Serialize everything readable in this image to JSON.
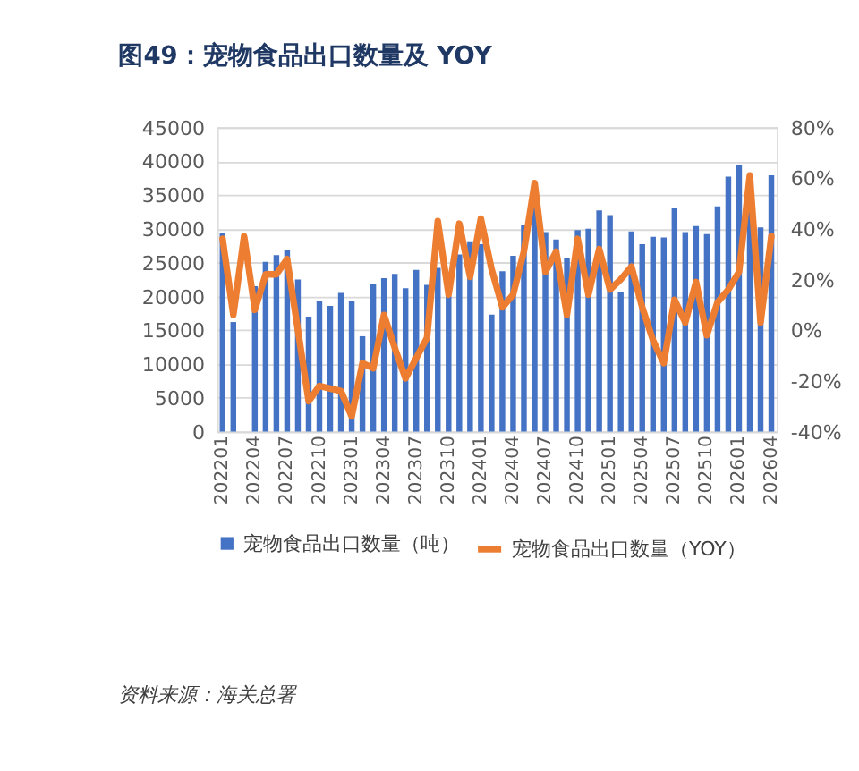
{
  "chart_data": {
    "type": "bar",
    "title": "图49：宠物食品出口数量及 YOY",
    "categories": [
      "202201",
      null,
      null,
      "202204",
      null,
      null,
      "202207",
      null,
      null,
      "202210",
      null,
      null,
      "202301",
      null,
      null,
      "202304",
      null,
      null,
      "202307",
      null,
      null,
      "202310",
      null,
      null,
      "202401",
      null,
      null,
      "202404",
      null,
      null,
      "202407",
      null,
      null,
      "202410",
      null,
      null,
      "202501",
      null,
      null,
      "202504",
      null,
      null,
      "202507",
      null,
      null,
      "202510",
      null,
      null,
      "202601",
      null,
      null,
      "202604"
    ],
    "series": [
      {
        "name": "宠物食品出口数量（吨）",
        "color": "#4472c4",
        "values": [
          29300,
          16200,
          null,
          21500,
          25100,
          26100,
          26900,
          22500,
          17000,
          19300,
          18600,
          20500,
          19300,
          14100,
          21900,
          22700,
          23300,
          21200,
          23900,
          21700,
          24200,
          20000,
          26200,
          28000,
          27700,
          17300,
          23700,
          26000,
          30500,
          33000,
          29500,
          28400,
          25600,
          29800,
          30000,
          32700,
          32000,
          20700,
          29600,
          27700,
          28800,
          28700,
          33100,
          29500,
          30400,
          29200,
          33300,
          37700,
          39500,
          33000,
          30200,
          37900
        ]
      },
      {
        "name": "宠物食品出口数量（YOY）",
        "type": "line",
        "axis": "y2",
        "color": "#ed7d31",
        "values": [
          36,
          6,
          37,
          8,
          22,
          22,
          28,
          0,
          -28,
          -22,
          -23,
          -24,
          -34,
          -13,
          -15,
          6,
          -7,
          -19,
          -11,
          -3,
          43,
          14,
          42,
          21,
          44,
          24,
          9,
          14,
          31,
          58,
          23,
          31,
          6,
          36,
          14,
          32,
          16,
          20,
          25,
          9,
          -4,
          -13,
          12,
          3,
          19,
          -2,
          11,
          16,
          23,
          61,
          3,
          37
        ]
      }
    ],
    "ylim": [
      0,
      45000
    ],
    "yticks": [
      0,
      5000,
      10000,
      15000,
      20000,
      25000,
      30000,
      35000,
      40000,
      45000
    ],
    "y2lim": [
      -40,
      80
    ],
    "y2ticks": [
      {
        "value": -40,
        "label": "-40%"
      },
      {
        "value": -20,
        "label": "-20%"
      },
      {
        "value": 0,
        "label": "0%"
      },
      {
        "value": 20,
        "label": "20%"
      },
      {
        "value": 40,
        "label": "40%"
      },
      {
        "value": 60,
        "label": "60%"
      },
      {
        "value": 80,
        "label": "80%"
      }
    ],
    "grid": "y",
    "legend": "bottom",
    "line_style": "solid",
    "marker": "none",
    "annotations": [
      "资料来源：海关总署"
    ]
  }
}
